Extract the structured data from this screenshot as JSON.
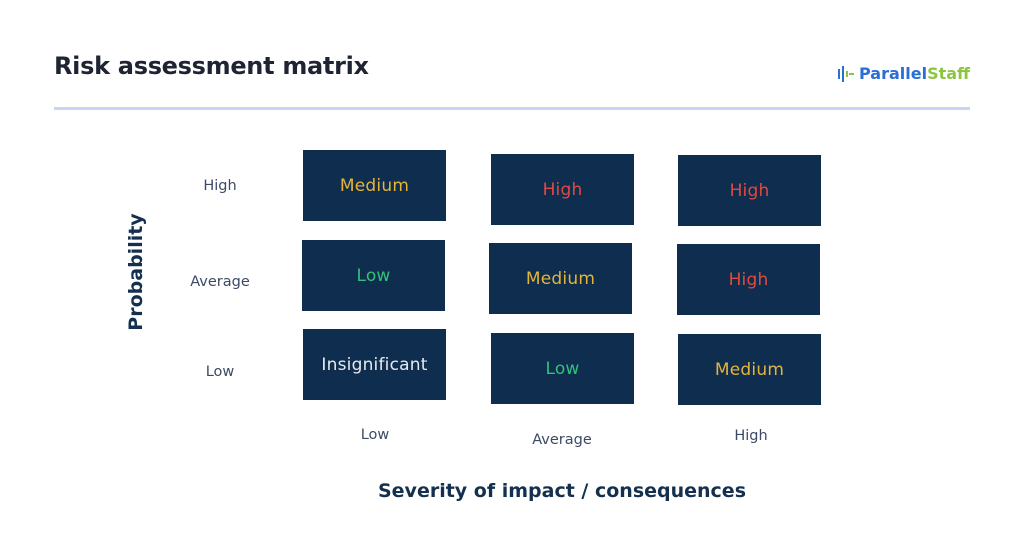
{
  "header": {
    "title": "Risk assessment matrix",
    "logo": {
      "part1": "Parallel",
      "part2": "Staff",
      "icon": "bars-logo-icon"
    }
  },
  "axes": {
    "y_title": "Probability",
    "x_title": "Severity of impact / consequences",
    "row_labels": [
      "High",
      "Average",
      "Low"
    ],
    "col_labels": [
      "Low",
      "Average",
      "High"
    ]
  },
  "matrix": [
    [
      "Medium",
      "High",
      "High"
    ],
    [
      "Low",
      "Medium",
      "High"
    ],
    [
      "Insignificant",
      "Low",
      "Medium"
    ]
  ],
  "colors": {
    "cell_background": "#0f2e4f",
    "Medium": "#e5b43a",
    "High": "#e2493f",
    "Low": "#33c07a",
    "Insignificant": "#e6eaf0",
    "divider": "#c9d3f5"
  }
}
